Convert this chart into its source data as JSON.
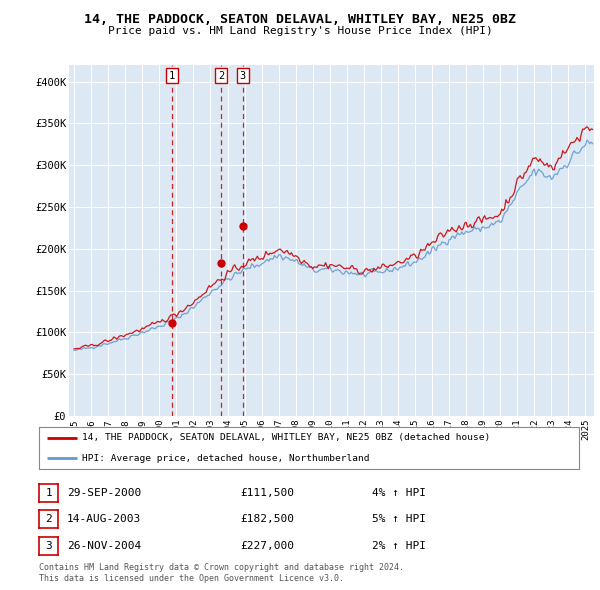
{
  "title1": "14, THE PADDOCK, SEATON DELAVAL, WHITLEY BAY, NE25 0BZ",
  "title2": "Price paid vs. HM Land Registry's House Price Index (HPI)",
  "fig_bg_color": "#ffffff",
  "plot_bg_color": "#dce9f5",
  "red_color": "#cc0000",
  "blue_color": "#6699cc",
  "sale_decimal": [
    2000.75,
    2003.62,
    2004.9
  ],
  "sale_prices": [
    111500,
    182500,
    227000
  ],
  "sale_labels": [
    "1",
    "2",
    "3"
  ],
  "sale_info": [
    {
      "label": "1",
      "date": "29-SEP-2000",
      "price": "£111,500",
      "pct": "4%",
      "dir": "↑"
    },
    {
      "label": "2",
      "date": "14-AUG-2003",
      "price": "£182,500",
      "pct": "5%",
      "dir": "↑"
    },
    {
      "label": "3",
      "date": "26-NOV-2004",
      "price": "£227,000",
      "pct": "2%",
      "dir": "↑"
    }
  ],
  "legend_line1": "14, THE PADDOCK, SEATON DELAVAL, WHITLEY BAY, NE25 0BZ (detached house)",
  "legend_line2": "HPI: Average price, detached house, Northumberland",
  "footer1": "Contains HM Land Registry data © Crown copyright and database right 2024.",
  "footer2": "This data is licensed under the Open Government Licence v3.0.",
  "ylim": [
    0,
    420000
  ],
  "yticks": [
    0,
    50000,
    100000,
    150000,
    200000,
    250000,
    300000,
    350000,
    400000
  ],
  "ytick_labels": [
    "£0",
    "£50K",
    "£100K",
    "£150K",
    "£200K",
    "£250K",
    "£300K",
    "£350K",
    "£400K"
  ],
  "xlim_start": 1995.0,
  "xlim_end": 2025.5,
  "xtick_years": [
    1995,
    1996,
    1997,
    1998,
    1999,
    2000,
    2001,
    2002,
    2003,
    2004,
    2005,
    2006,
    2007,
    2008,
    2009,
    2010,
    2011,
    2012,
    2013,
    2014,
    2015,
    2016,
    2017,
    2018,
    2019,
    2020,
    2021,
    2022,
    2023,
    2024,
    2025
  ]
}
